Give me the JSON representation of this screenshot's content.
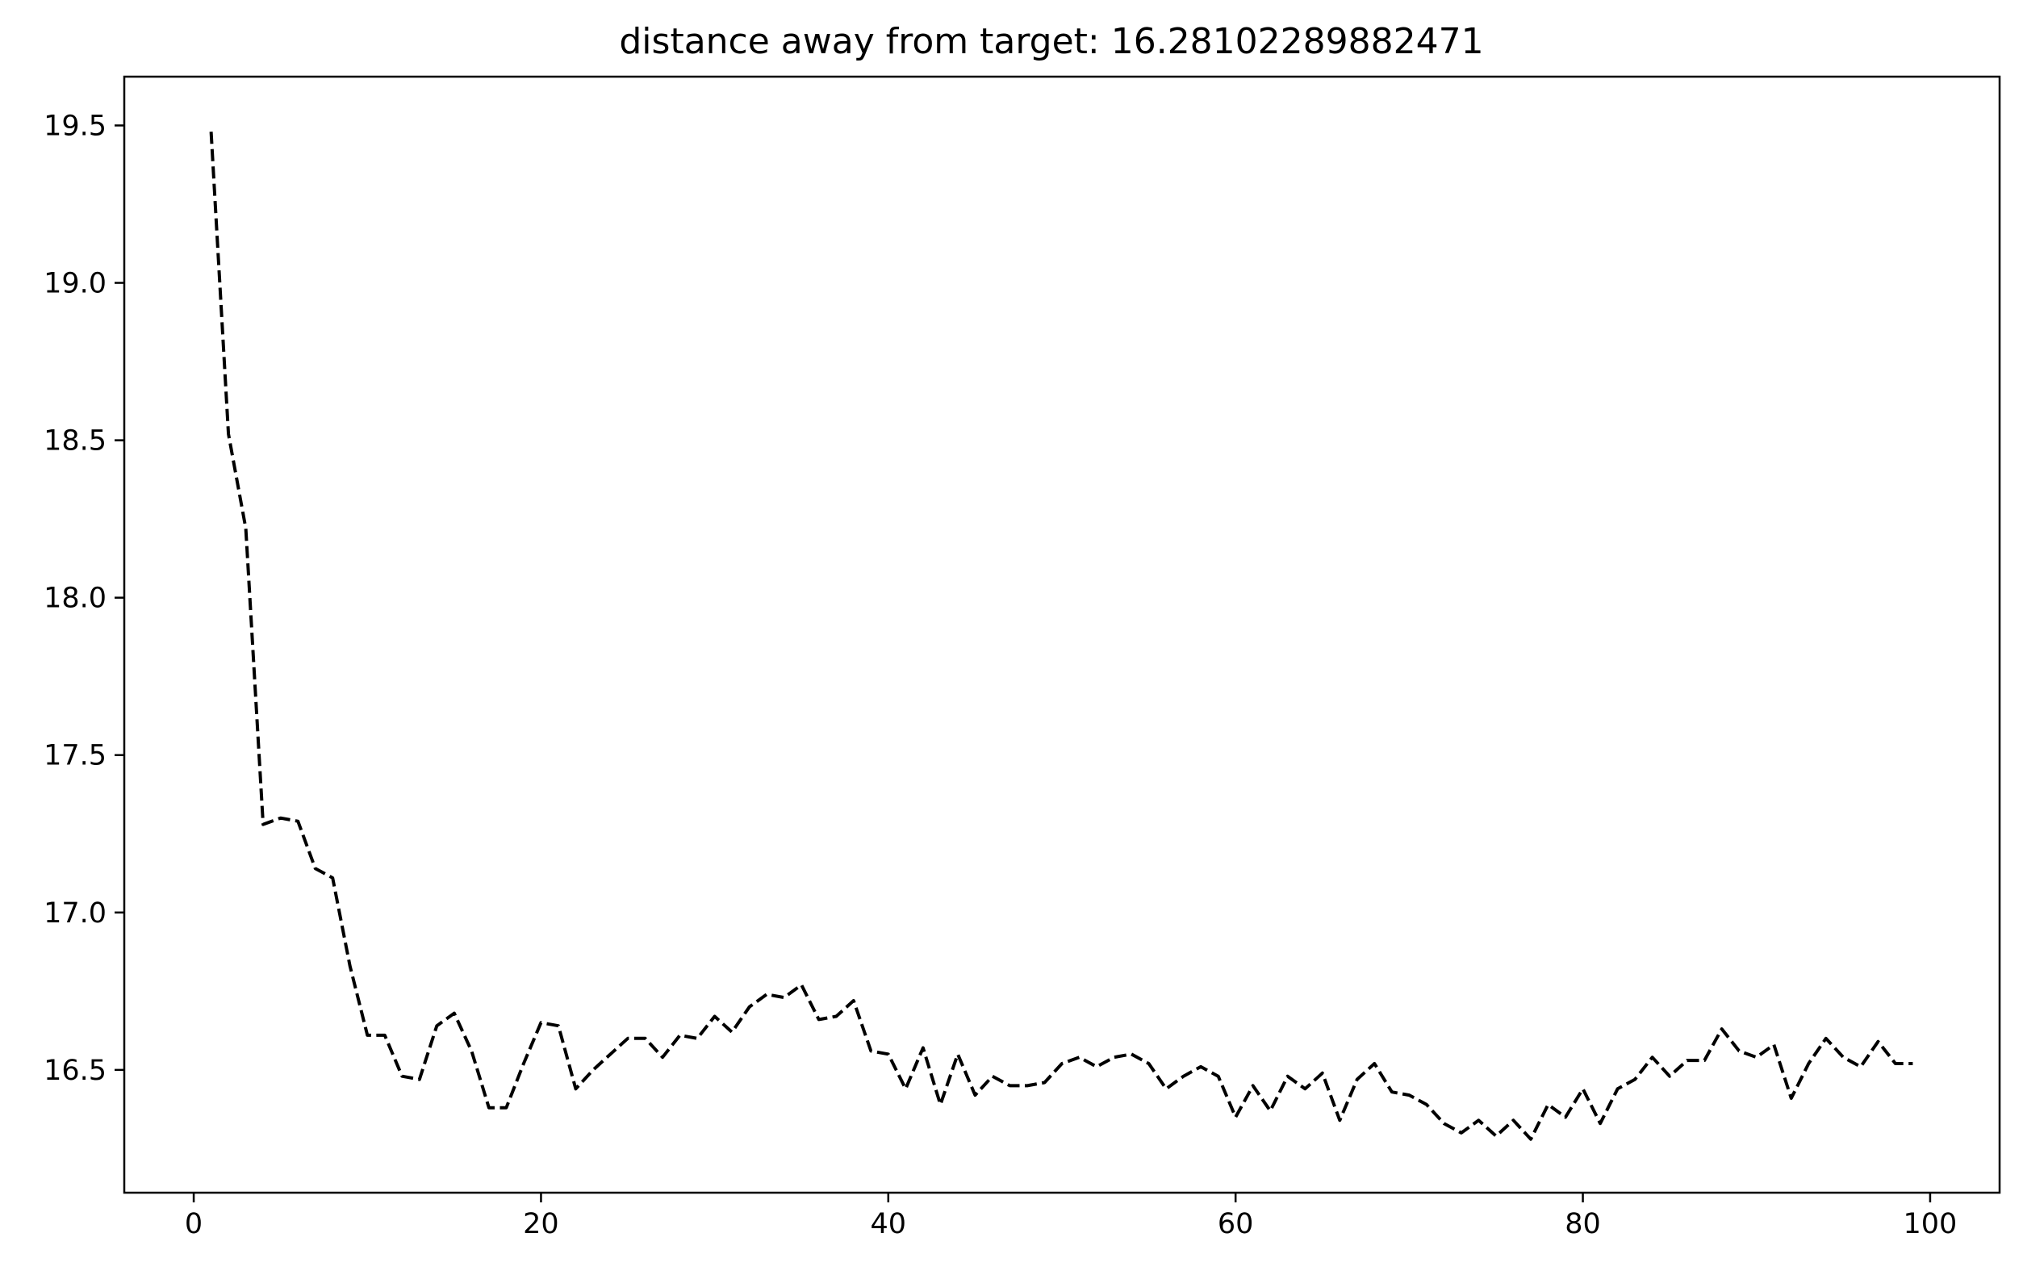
{
  "chart_data": {
    "type": "line",
    "title": "distance away from target: 16.28102289882471",
    "xlabel": "",
    "ylabel": "",
    "xlim": [
      -4,
      104
    ],
    "ylim": [
      16.11,
      19.655
    ],
    "xticks": [
      0,
      20,
      40,
      60,
      80,
      100
    ],
    "xtick_labels": [
      "0",
      "20",
      "40",
      "60",
      "80",
      "100"
    ],
    "yticks": [
      16.5,
      17.0,
      17.5,
      18.0,
      18.5,
      19.0,
      19.5
    ],
    "ytick_labels": [
      "16.5",
      "17.0",
      "17.5",
      "18.0",
      "18.5",
      "19.0",
      "19.5"
    ],
    "grid": false,
    "legend": false,
    "series": [
      {
        "color": "#000000",
        "linestyle": "dashed",
        "x": [
          1,
          2,
          3,
          4,
          5,
          6,
          7,
          8,
          9,
          10,
          11,
          12,
          13,
          14,
          15,
          16,
          17,
          18,
          19,
          20,
          21,
          22,
          23,
          24,
          25,
          26,
          27,
          28,
          29,
          30,
          31,
          32,
          33,
          34,
          35,
          36,
          37,
          38,
          39,
          40,
          41,
          42,
          43,
          44,
          45,
          46,
          47,
          48,
          49,
          50,
          51,
          52,
          53,
          54,
          55,
          56,
          57,
          58,
          59,
          60,
          61,
          62,
          63,
          64,
          65,
          66,
          67,
          68,
          69,
          70,
          71,
          72,
          73,
          74,
          75,
          76,
          77,
          78,
          79,
          80,
          81,
          82,
          83,
          84,
          85,
          86,
          87,
          88,
          89,
          90,
          91,
          92,
          93,
          94,
          95,
          96,
          97,
          98,
          99
        ],
        "y": [
          19.48,
          18.52,
          18.22,
          17.28,
          17.3,
          17.29,
          17.14,
          17.11,
          16.83,
          16.61,
          16.61,
          16.48,
          16.47,
          16.64,
          16.68,
          16.56,
          16.38,
          16.38,
          16.52,
          16.65,
          16.64,
          16.44,
          16.5,
          16.55,
          16.6,
          16.6,
          16.54,
          16.61,
          16.6,
          16.67,
          16.62,
          16.7,
          16.74,
          16.73,
          16.77,
          16.66,
          16.67,
          16.72,
          16.56,
          16.55,
          16.44,
          16.57,
          16.39,
          16.55,
          16.42,
          16.48,
          16.45,
          16.45,
          16.46,
          16.52,
          16.54,
          16.51,
          16.54,
          16.55,
          16.52,
          16.44,
          16.48,
          16.51,
          16.48,
          16.35,
          16.45,
          16.37,
          16.48,
          16.44,
          16.49,
          16.34,
          16.47,
          16.52,
          16.43,
          16.42,
          16.39,
          16.33,
          16.3,
          16.34,
          16.29,
          16.34,
          16.28,
          16.39,
          16.35,
          16.44,
          16.33,
          16.44,
          16.47,
          16.54,
          16.48,
          16.53,
          16.53,
          16.63,
          16.56,
          16.54,
          16.58,
          16.41,
          16.52,
          16.6,
          16.54,
          16.51,
          16.59,
          16.52,
          16.52
        ]
      }
    ]
  }
}
